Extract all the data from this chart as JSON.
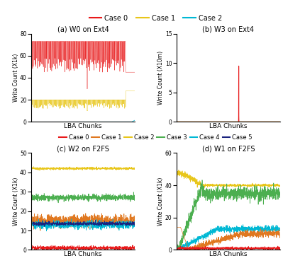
{
  "top_legend": [
    {
      "label": "Case 0",
      "color": "#e8191a"
    },
    {
      "label": "Case 1",
      "color": "#e8c61a"
    },
    {
      "label": "Case 2",
      "color": "#00b8d4"
    }
  ],
  "bottom_legend": [
    {
      "label": "Case 0",
      "color": "#e8191a"
    },
    {
      "label": "Case 1",
      "color": "#e07820"
    },
    {
      "label": "Case 2",
      "color": "#e8c61a"
    },
    {
      "label": "Case 3",
      "color": "#4caf50"
    },
    {
      "label": "Case 4",
      "color": "#00b8d4"
    },
    {
      "label": "Case 5",
      "color": "#1a237e"
    }
  ],
  "subplot_a": {
    "title": "(a) W0 on Ext4",
    "xlabel": "LBA Chunks",
    "ylabel": "Write Count (X1k)",
    "ylim": [
      0,
      80
    ],
    "yticks": [
      0,
      20,
      40,
      60,
      80
    ]
  },
  "subplot_b": {
    "title": "(b) W3 on Ext4",
    "xlabel": "LBA Chunks",
    "ylabel": "Write Count (X10m)",
    "ylim": [
      0,
      15
    ],
    "yticks": [
      0,
      5,
      10,
      15
    ]
  },
  "subplot_c": {
    "title": "(c) W2 on F2FS",
    "xlabel": "LBA Chunks",
    "ylabel": "Write Count (X1k)",
    "ylim": [
      0,
      50
    ],
    "yticks": [
      0,
      10,
      20,
      30,
      40,
      50
    ]
  },
  "subplot_d": {
    "title": "(d) W1 on F2FS",
    "xlabel": "LBA Chunks",
    "ylabel": "Write Count (X1k)",
    "ylim": [
      0,
      60
    ],
    "yticks": [
      0,
      20,
      40,
      60
    ]
  }
}
